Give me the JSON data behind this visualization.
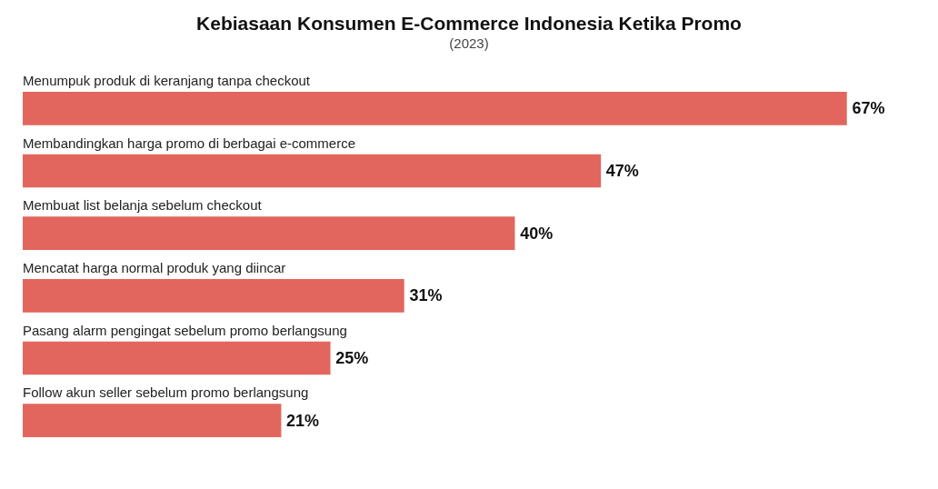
{
  "chart_data": {
    "type": "bar",
    "orientation": "horizontal",
    "title": "Kebiasaan Konsumen E-Commerce Indonesia Ketika Promo",
    "subtitle": "(2023)",
    "categories": [
      "Menumpuk produk di keranjang tanpa checkout",
      "Membandingkan harga promo di berbagai e-commerce",
      "Membuat list belanja sebelum checkout",
      "Mencatat harga normal produk yang diincar",
      "Pasang alarm pengingat sebelum promo berlangsung",
      "Follow akun seller sebelum promo berlangsung"
    ],
    "values": [
      67,
      47,
      40,
      31,
      25,
      21
    ],
    "value_labels": [
      "67%",
      "47%",
      "40%",
      "31%",
      "25%",
      "21%"
    ],
    "color": "#e2665d",
    "tick_labels": false
  }
}
